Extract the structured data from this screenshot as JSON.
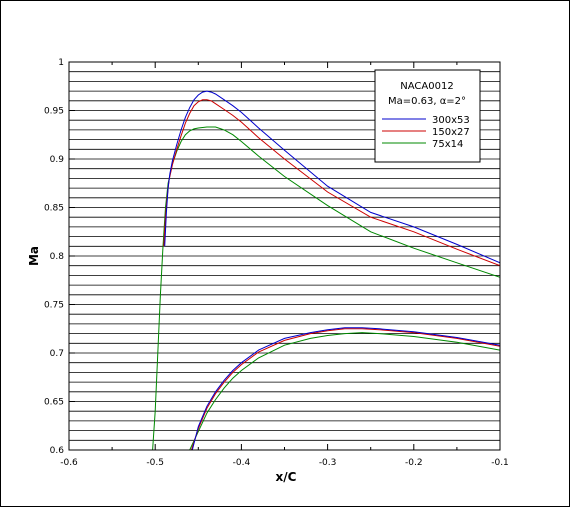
{
  "chart_data": {
    "type": "line",
    "xlabel": "x/C",
    "ylabel": "Ma",
    "xlim": [
      -0.6,
      -0.1
    ],
    "ylim": [
      0.6,
      1.0
    ],
    "x_ticks": [
      -0.6,
      -0.5,
      -0.4,
      -0.3,
      -0.2,
      -0.1
    ],
    "x_tick_labels": [
      "-0.6",
      "-0.5",
      "-0.4",
      "-0.3",
      "-0.2",
      "-0.1"
    ],
    "y_ticks": [
      0.6,
      0.65,
      0.7,
      0.75,
      0.8,
      0.85,
      0.9,
      0.95,
      1.0
    ],
    "y_tick_labels": [
      "0.6",
      "0.65",
      "0.7",
      "0.75",
      "0.8",
      "0.85",
      "0.9",
      "0.95",
      "1"
    ],
    "grid": "horizontal",
    "legend": {
      "placement": "top-right",
      "title_line1": "NACA0012",
      "title_line2": "Ma=0.63, α=2°"
    },
    "series": [
      {
        "name": "300x53",
        "color": "#0000cc",
        "upper": {
          "x": [
            -0.489,
            -0.487,
            -0.485,
            -0.483,
            -0.48,
            -0.475,
            -0.47,
            -0.465,
            -0.46,
            -0.455,
            -0.45,
            -0.445,
            -0.44,
            -0.435,
            -0.43,
            -0.42,
            -0.41,
            -0.4,
            -0.38,
            -0.35,
            -0.3,
            -0.25,
            -0.2,
            -0.15,
            -0.1
          ],
          "y": [
            0.81,
            0.845,
            0.87,
            0.885,
            0.898,
            0.915,
            0.93,
            0.943,
            0.953,
            0.961,
            0.966,
            0.969,
            0.97,
            0.969,
            0.967,
            0.961,
            0.955,
            0.948,
            0.932,
            0.909,
            0.872,
            0.845,
            0.83,
            0.812,
            0.793
          ]
        },
        "lower": {
          "x": [
            -0.457,
            -0.45,
            -0.44,
            -0.43,
            -0.42,
            -0.41,
            -0.4,
            -0.38,
            -0.35,
            -0.32,
            -0.3,
            -0.28,
            -0.26,
            -0.24,
            -0.2,
            -0.15,
            -0.1
          ],
          "y": [
            0.6,
            0.624,
            0.645,
            0.66,
            0.672,
            0.682,
            0.69,
            0.703,
            0.715,
            0.721,
            0.724,
            0.726,
            0.726,
            0.725,
            0.722,
            0.716,
            0.708
          ]
        }
      },
      {
        "name": "150x27",
        "color": "#cc0000",
        "upper": {
          "x": [
            -0.49,
            -0.488,
            -0.486,
            -0.484,
            -0.48,
            -0.475,
            -0.47,
            -0.465,
            -0.46,
            -0.455,
            -0.45,
            -0.445,
            -0.44,
            -0.435,
            -0.43,
            -0.42,
            -0.41,
            -0.4,
            -0.38,
            -0.35,
            -0.3,
            -0.25,
            -0.2,
            -0.15,
            -0.1
          ],
          "y": [
            0.81,
            0.84,
            0.862,
            0.878,
            0.894,
            0.91,
            0.924,
            0.937,
            0.947,
            0.955,
            0.959,
            0.961,
            0.961,
            0.96,
            0.957,
            0.951,
            0.945,
            0.938,
            0.922,
            0.9,
            0.866,
            0.84,
            0.825,
            0.807,
            0.79
          ]
        },
        "lower": {
          "x": [
            -0.458,
            -0.45,
            -0.44,
            -0.43,
            -0.42,
            -0.41,
            -0.4,
            -0.38,
            -0.35,
            -0.32,
            -0.3,
            -0.28,
            -0.26,
            -0.24,
            -0.2,
            -0.15,
            -0.1
          ],
          "y": [
            0.6,
            0.622,
            0.643,
            0.658,
            0.67,
            0.68,
            0.688,
            0.701,
            0.713,
            0.72,
            0.723,
            0.725,
            0.725,
            0.724,
            0.721,
            0.715,
            0.707
          ]
        }
      },
      {
        "name": "75x14",
        "color": "#008800",
        "upper": {
          "x": [
            -0.503,
            -0.5,
            -0.497,
            -0.494,
            -0.491,
            -0.488,
            -0.485,
            -0.48,
            -0.475,
            -0.47,
            -0.465,
            -0.46,
            -0.455,
            -0.45,
            -0.44,
            -0.43,
            -0.42,
            -0.41,
            -0.4,
            -0.38,
            -0.35,
            -0.3,
            -0.25,
            -0.2,
            -0.15,
            -0.1
          ],
          "y": [
            0.6,
            0.64,
            0.7,
            0.76,
            0.81,
            0.85,
            0.875,
            0.895,
            0.908,
            0.918,
            0.925,
            0.929,
            0.931,
            0.932,
            0.933,
            0.933,
            0.93,
            0.925,
            0.918,
            0.903,
            0.882,
            0.852,
            0.825,
            0.808,
            0.793,
            0.778
          ]
        },
        "lower": {
          "x": [
            -0.46,
            -0.45,
            -0.44,
            -0.43,
            -0.42,
            -0.41,
            -0.4,
            -0.38,
            -0.35,
            -0.32,
            -0.3,
            -0.28,
            -0.26,
            -0.24,
            -0.2,
            -0.15,
            -0.1
          ],
          "y": [
            0.6,
            0.619,
            0.638,
            0.652,
            0.664,
            0.674,
            0.682,
            0.695,
            0.708,
            0.715,
            0.718,
            0.72,
            0.721,
            0.72,
            0.717,
            0.711,
            0.703
          ]
        }
      }
    ]
  }
}
